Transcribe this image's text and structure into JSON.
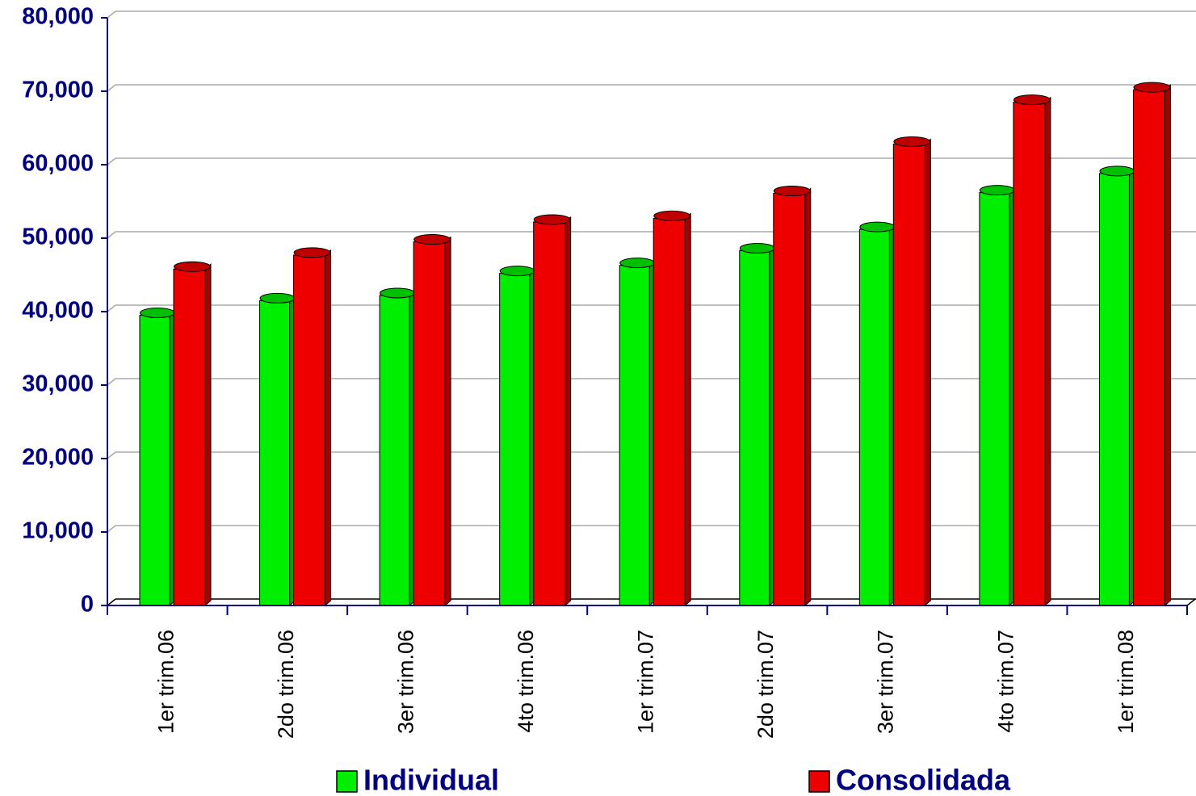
{
  "chart_data": {
    "type": "bar",
    "categories": [
      "1er trim.06",
      "2do trim.06",
      "3er trim.06",
      "4to trim.06",
      "1er trim.07",
      "2do trim.07",
      "3er trim.07",
      "4to trim.07",
      "1er trim.08"
    ],
    "series": [
      {
        "name": "Individual",
        "color": "#00ee00",
        "values": [
          39500,
          41500,
          42200,
          45200,
          46300,
          48300,
          51200,
          56200,
          58800
        ]
      },
      {
        "name": "Consolidada",
        "color": "#ee0000",
        "values": [
          45800,
          47700,
          49500,
          52200,
          52700,
          56100,
          62800,
          68500,
          70200
        ]
      }
    ],
    "ylim": [
      0,
      80000
    ],
    "yticks": [
      0,
      {
        "value": 10000,
        "label": "10,000"
      },
      {
        "value": 20000,
        "label": "20,000"
      },
      {
        "value": 30000,
        "label": "30,000"
      },
      {
        "value": 40000,
        "label": "40,000"
      },
      {
        "value": 50000,
        "label": "50,000"
      },
      {
        "value": 60000,
        "label": "60,000"
      },
      {
        "value": 70000,
        "label": "70,000"
      },
      {
        "value": 80000,
        "label": "80,000"
      }
    ],
    "grid": true
  }
}
